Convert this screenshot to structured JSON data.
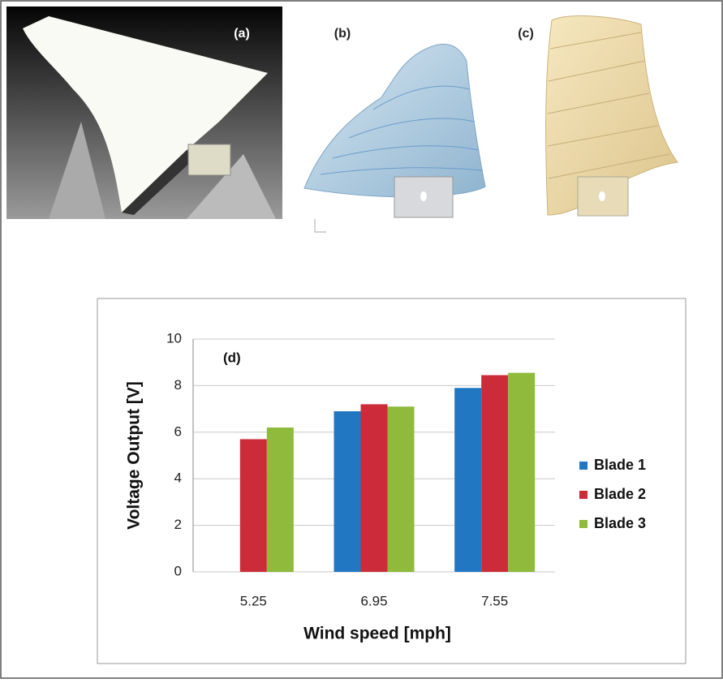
{
  "panels": {
    "a": "(a)",
    "b": "(b)",
    "c": "(c)"
  },
  "chart_data": {
    "type": "bar",
    "annotation": "(d)",
    "x_label": "Wind speed [mph]",
    "y_label": "Voltage Output [V]",
    "categories": [
      "5.25",
      "6.95",
      "7.55"
    ],
    "series": [
      {
        "name": "Blade 1",
        "color": "#2277c3",
        "values": [
          null,
          6.9,
          7.9
        ]
      },
      {
        "name": "Blade 2",
        "color": "#cc2b3a",
        "values": [
          5.7,
          7.2,
          8.45
        ]
      },
      {
        "name": "Blade 3",
        "color": "#8fba3c",
        "values": [
          6.2,
          7.1,
          8.55
        ]
      }
    ],
    "ylim": [
      0,
      10
    ],
    "yticks": [
      0,
      2,
      4,
      6,
      8,
      10
    ],
    "grid": true,
    "legend": "right"
  }
}
